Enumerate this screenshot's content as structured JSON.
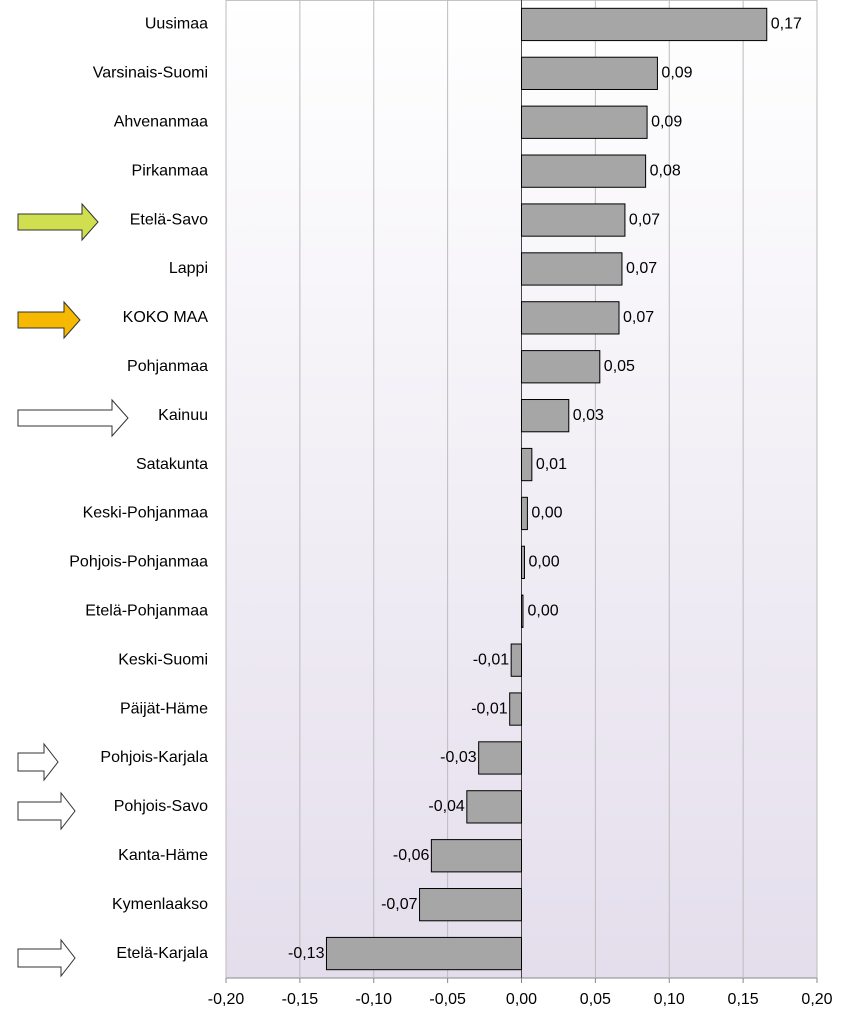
{
  "chart_data": {
    "type": "bar",
    "orientation": "horizontal",
    "categories": [
      "Uusimaa",
      "Varsinais-Suomi",
      "Ahvenanmaa",
      "Pirkanmaa",
      "Etelä-Savo",
      "Lappi",
      "KOKO MAA",
      "Pohjanmaa",
      "Kainuu",
      "Satakunta",
      "Keski-Pohjanmaa",
      "Pohjois-Pohjanmaa",
      "Etelä-Pohjanmaa",
      "Keski-Suomi",
      "Päijät-Häme",
      "Pohjois-Karjala",
      "Pohjois-Savo",
      "Kanta-Häme",
      "Kymenlaakso",
      "Etelä-Karjala"
    ],
    "values": [
      0.166,
      0.092,
      0.085,
      0.084,
      0.07,
      0.068,
      0.066,
      0.053,
      0.032,
      0.007,
      0.004,
      0.002,
      0.001,
      -0.007,
      -0.008,
      -0.029,
      -0.037,
      -0.061,
      -0.069,
      -0.132
    ],
    "value_labels": [
      "0,17",
      "0,09",
      "0,09",
      "0,08",
      "0,07",
      "0,07",
      "0,07",
      "0,05",
      "0,03",
      "0,01",
      "0,00",
      "0,00",
      "0,00",
      "-0,01",
      "-0,01",
      "-0,03",
      "-0,04",
      "-0,06",
      "-0,07",
      "-0,13"
    ],
    "color": "#a6a6a6",
    "xlim": [
      -0.2,
      0.2
    ],
    "xticks": [
      {
        "value": -0.2,
        "label": "-0,20"
      },
      {
        "value": -0.15,
        "label": "-0,15"
      },
      {
        "value": -0.1,
        "label": "-0,10"
      },
      {
        "value": -0.05,
        "label": "-0,05"
      },
      {
        "value": 0,
        "label": "0,00"
      },
      {
        "value": 0.05,
        "label": "0,05"
      },
      {
        "value": 0.1,
        "label": "0,10"
      },
      {
        "value": 0.15,
        "label": "0,15"
      },
      {
        "value": 0.2,
        "label": "0,20"
      }
    ],
    "grid": true
  }
}
